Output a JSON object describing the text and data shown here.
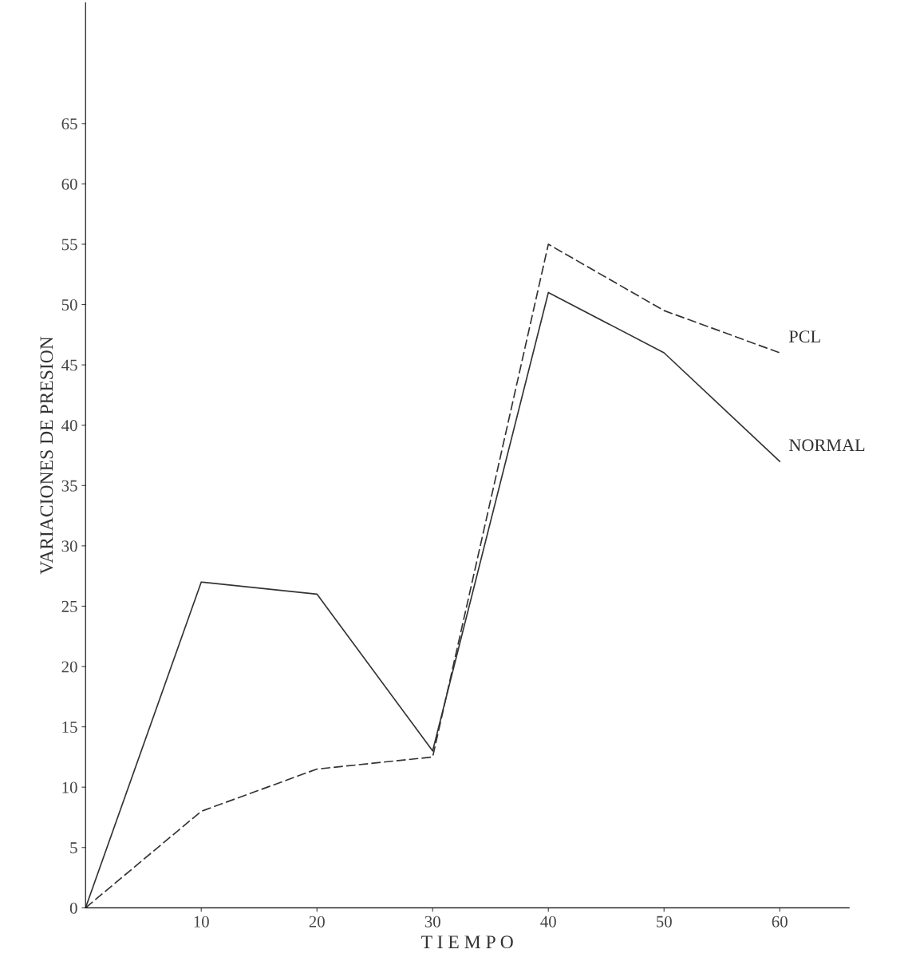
{
  "chart_data": {
    "type": "line",
    "xlabel": "T I E M P O",
    "ylabel": "VARIACIONES DE PRESION",
    "x": [
      0,
      10,
      20,
      30,
      40,
      50,
      60
    ],
    "series": [
      {
        "name": "NORMAL",
        "color": "#333333",
        "line_style": "solid",
        "values": [
          0,
          27,
          26,
          13,
          51,
          46,
          37
        ]
      },
      {
        "name": "PCL",
        "color": "#333333",
        "line_style": "dashed",
        "values": [
          0,
          8,
          11.5,
          12.5,
          55,
          49.5,
          46
        ]
      }
    ],
    "xlim": [
      0,
      66
    ],
    "ylim": [
      0,
      75
    ],
    "xticks": [
      10,
      20,
      30,
      40,
      50,
      60
    ],
    "yticks": [
      0,
      5,
      10,
      15,
      20,
      25,
      30,
      35,
      40,
      45,
      50,
      55,
      60,
      65
    ],
    "grid": false,
    "legend": false,
    "marker": "none"
  }
}
